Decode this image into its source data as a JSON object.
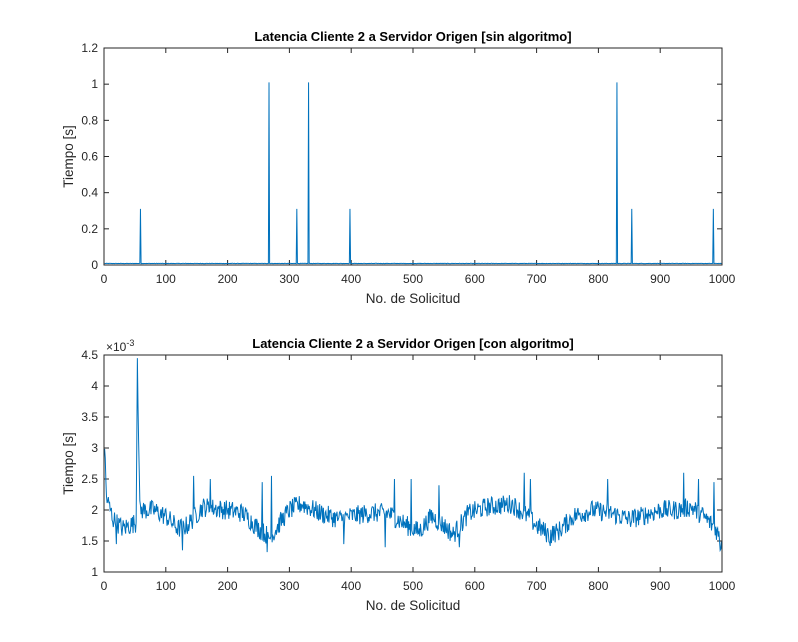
{
  "chart_data": [
    {
      "type": "line",
      "title": "Latencia Cliente 2 a Servidor Origen [sin algoritmo]",
      "xlabel": "No. de Solicitud",
      "ylabel": "Tiempo [s]",
      "xlim": [
        0,
        1000
      ],
      "ylim": [
        0,
        1.2
      ],
      "xticks": [
        "0",
        "100",
        "200",
        "300",
        "400",
        "500",
        "600",
        "700",
        "800",
        "900",
        "1000"
      ],
      "yticks": [
        "0",
        "0.2",
        "0.4",
        "0.6",
        "0.8",
        "1",
        "1.2"
      ],
      "color": "#0072BD",
      "baseline": 0.0085,
      "spikes": [
        {
          "x": 59,
          "y": 0.31
        },
        {
          "x": 267,
          "y": 1.01
        },
        {
          "x": 312,
          "y": 0.31
        },
        {
          "x": 331,
          "y": 1.01
        },
        {
          "x": 398,
          "y": 0.31
        },
        {
          "x": 830,
          "y": 1.01
        },
        {
          "x": 854,
          "y": 0.31
        },
        {
          "x": 986,
          "y": 0.31
        }
      ]
    },
    {
      "type": "line",
      "title": "Latencia Cliente 2 a Servidor Origen [con algoritmo]",
      "xlabel": "No. de Solicitud",
      "ylabel": "Tiempo [s]",
      "exponent_label": "×10",
      "exponent_value": "-3",
      "xlim": [
        0,
        1000
      ],
      "ylim": [
        1,
        4.5
      ],
      "xticks": [
        "0",
        "100",
        "200",
        "300",
        "400",
        "500",
        "600",
        "700",
        "800",
        "900",
        "1000"
      ],
      "yticks": [
        "1",
        "1.5",
        "2",
        "2.5",
        "3",
        "3.5",
        "4",
        "4.5"
      ],
      "color": "#0072BD",
      "trend": [
        [
          0,
          3.3
        ],
        [
          4,
          2.2
        ],
        [
          15,
          1.85
        ],
        [
          30,
          1.7
        ],
        [
          52,
          1.8
        ],
        [
          54,
          4.45
        ],
        [
          58,
          2.0
        ],
        [
          80,
          2.0
        ],
        [
          100,
          1.9
        ],
        [
          120,
          1.7
        ],
        [
          135,
          1.75
        ],
        [
          160,
          2.05
        ],
        [
          200,
          2.0
        ],
        [
          225,
          1.95
        ],
        [
          250,
          1.7
        ],
        [
          270,
          1.55
        ],
        [
          285,
          1.8
        ],
        [
          300,
          2.0
        ],
        [
          320,
          2.1
        ],
        [
          350,
          1.95
        ],
        [
          380,
          1.85
        ],
        [
          400,
          1.9
        ],
        [
          430,
          1.95
        ],
        [
          460,
          1.95
        ],
        [
          490,
          1.75
        ],
        [
          510,
          1.65
        ],
        [
          530,
          1.9
        ],
        [
          550,
          1.75
        ],
        [
          565,
          1.6
        ],
        [
          590,
          1.95
        ],
        [
          620,
          2.05
        ],
        [
          660,
          2.1
        ],
        [
          685,
          1.9
        ],
        [
          700,
          1.75
        ],
        [
          720,
          1.6
        ],
        [
          735,
          1.65
        ],
        [
          760,
          1.9
        ],
        [
          790,
          2.0
        ],
        [
          820,
          1.95
        ],
        [
          850,
          1.85
        ],
        [
          870,
          1.9
        ],
        [
          900,
          2.0
        ],
        [
          930,
          2.0
        ],
        [
          950,
          2.05
        ],
        [
          970,
          1.9
        ],
        [
          990,
          1.7
        ],
        [
          1000,
          1.45
        ]
      ],
      "peaks": [
        {
          "x": 145,
          "y": 2.55
        },
        {
          "x": 172,
          "y": 2.5
        },
        {
          "x": 256,
          "y": 2.45
        },
        {
          "x": 271,
          "y": 2.55
        },
        {
          "x": 470,
          "y": 2.5
        },
        {
          "x": 497,
          "y": 2.5
        },
        {
          "x": 542,
          "y": 2.4
        },
        {
          "x": 680,
          "y": 2.6
        },
        {
          "x": 690,
          "y": 2.5
        },
        {
          "x": 815,
          "y": 2.5
        },
        {
          "x": 938,
          "y": 2.6
        },
        {
          "x": 962,
          "y": 2.5
        },
        {
          "x": 987,
          "y": 2.45
        }
      ],
      "troughs": [
        {
          "x": 20,
          "y": 1.45
        },
        {
          "x": 127,
          "y": 1.35
        },
        {
          "x": 264,
          "y": 1.32
        },
        {
          "x": 388,
          "y": 1.45
        },
        {
          "x": 455,
          "y": 1.4
        },
        {
          "x": 575,
          "y": 1.4
        },
        {
          "x": 722,
          "y": 1.42
        },
        {
          "x": 997,
          "y": 1.35
        }
      ]
    }
  ]
}
